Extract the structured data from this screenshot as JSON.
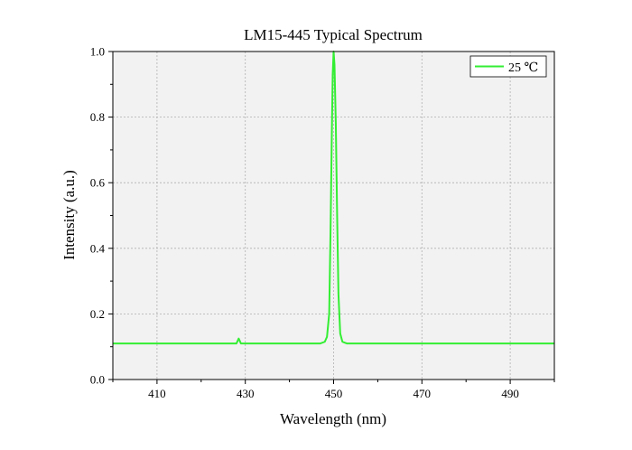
{
  "chart_data": {
    "type": "line",
    "title": "LM15-445 Typical Spectrum",
    "xlabel": "Wavelength (nm)",
    "ylabel": "Intensity (a.u.)",
    "xlim": [
      400,
      500
    ],
    "ylim": [
      0.0,
      1.0
    ],
    "x_ticks": [
      410,
      430,
      450,
      470,
      490
    ],
    "x_tick_labels": [
      "410",
      "430",
      "450",
      "470",
      "490"
    ],
    "y_ticks": [
      0.0,
      0.2,
      0.4,
      0.6,
      0.8,
      1.0
    ],
    "y_tick_labels": [
      "0.0",
      "0.2",
      "0.4",
      "0.6",
      "0.8",
      "1.0"
    ],
    "grid": true,
    "legend_position": "top-right",
    "series": [
      {
        "name": "25 ℃",
        "color": "#33ee33",
        "x": [
          400,
          410,
          420,
          428,
          428.5,
          429,
          440,
          447,
          448,
          448.5,
          449,
          449.3,
          449.6,
          449.8,
          450,
          450.2,
          450.5,
          450.8,
          451.1,
          451.5,
          452,
          453,
          460,
          470,
          480,
          490,
          500
        ],
        "y": [
          0.11,
          0.11,
          0.11,
          0.11,
          0.125,
          0.11,
          0.11,
          0.11,
          0.115,
          0.13,
          0.2,
          0.45,
          0.75,
          0.93,
          1.0,
          0.96,
          0.78,
          0.5,
          0.26,
          0.14,
          0.115,
          0.11,
          0.11,
          0.11,
          0.11,
          0.11,
          0.11
        ]
      }
    ]
  }
}
